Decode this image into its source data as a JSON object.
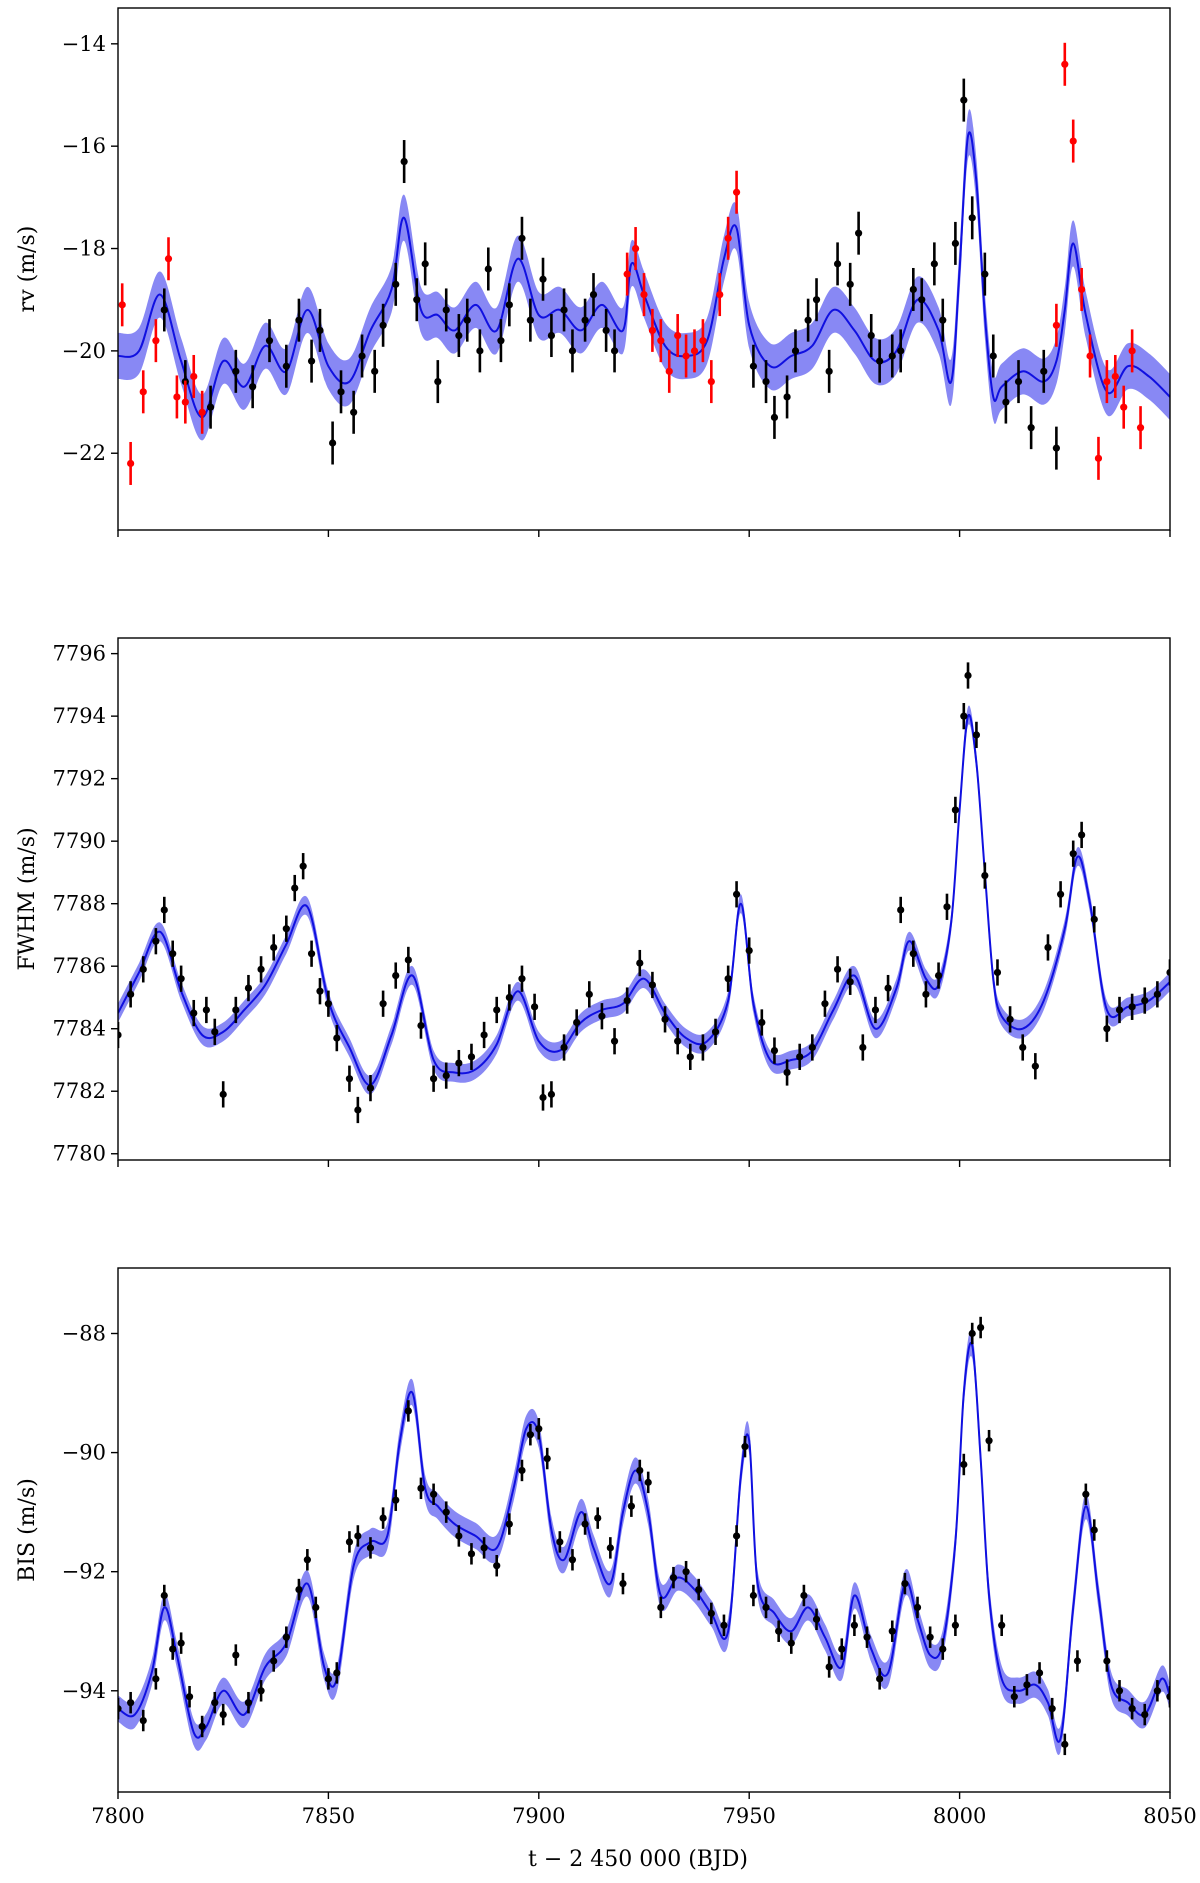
{
  "figure": {
    "xlabel": "t − 2 450 000 (BJD)",
    "xlim": [
      7800,
      8050
    ],
    "xticks": [
      7800,
      7850,
      7900,
      7950,
      8000,
      8050
    ]
  },
  "colors": {
    "model": "#1010e0",
    "band": "#5a5af0",
    "points": "#000000",
    "points_alt": "#ff0000"
  },
  "chart_data": [
    {
      "type": "scatter",
      "ylabel": "rv (m/s)",
      "ylim": [
        -23.5,
        -13.3
      ],
      "yticks": [
        -14,
        -16,
        -18,
        -20,
        -22
      ],
      "ytick_labels": [
        "−14",
        "−16",
        "−18",
        "−20",
        "−22"
      ],
      "series": [
        {
          "color": "black",
          "x": [
            7811,
            7816,
            7822,
            7828,
            7832,
            7836,
            7840,
            7843,
            7846,
            7848,
            7851,
            7853,
            7856,
            7858,
            7861,
            7863,
            7866,
            7868,
            7871,
            7873,
            7876,
            7878,
            7881,
            7883,
            7886,
            7888,
            7891,
            7893,
            7896,
            7898,
            7901,
            7903,
            7906,
            7908,
            7911,
            7913,
            7916,
            7918,
            7951,
            7954,
            7956,
            7959,
            7961,
            7964,
            7966,
            7969,
            7971,
            7974,
            7976,
            7979,
            7981,
            7984,
            7986,
            7989,
            7991,
            7994,
            7996,
            7999,
            8001,
            8003,
            8006,
            8008,
            8011,
            8014,
            8017,
            8020,
            8023
          ],
          "y": [
            -19.2,
            -20.6,
            -21.1,
            -20.4,
            -20.7,
            -19.8,
            -20.3,
            -19.4,
            -20.2,
            -19.6,
            -21.8,
            -20.8,
            -21.2,
            -20.1,
            -20.4,
            -19.5,
            -18.7,
            -16.3,
            -19.0,
            -18.3,
            -20.6,
            -19.2,
            -19.7,
            -19.4,
            -20.0,
            -18.4,
            -19.8,
            -19.1,
            -17.8,
            -19.4,
            -18.6,
            -19.7,
            -19.2,
            -20.0,
            -19.4,
            -18.9,
            -19.6,
            -20.0,
            -20.3,
            -20.6,
            -21.3,
            -20.9,
            -20.0,
            -19.4,
            -19.0,
            -20.4,
            -18.3,
            -18.7,
            -17.7,
            -19.7,
            -20.2,
            -20.1,
            -20.0,
            -18.8,
            -19.0,
            -18.3,
            -19.4,
            -17.9,
            -15.1,
            -17.4,
            -18.5,
            -20.1,
            -21.0,
            -20.6,
            -21.5,
            -20.4,
            -21.9
          ]
        },
        {
          "color": "red",
          "x": [
            7801,
            7803,
            7806,
            7809,
            7812,
            7814,
            7816,
            7818,
            7820,
            7921,
            7923,
            7925,
            7927,
            7929,
            7931,
            7933,
            7935,
            7937,
            7939,
            7941,
            7943,
            7945,
            7947,
            8023,
            8025,
            8027,
            8029,
            8031,
            8033,
            8035,
            8037,
            8039,
            8041,
            8043
          ],
          "y": [
            -19.1,
            -22.2,
            -20.8,
            -19.8,
            -18.2,
            -20.9,
            -21.0,
            -20.5,
            -21.2,
            -18.5,
            -18.0,
            -18.9,
            -19.6,
            -19.8,
            -20.4,
            -19.7,
            -20.1,
            -20.0,
            -19.8,
            -20.6,
            -18.9,
            -17.8,
            -16.9,
            -19.5,
            -14.4,
            -15.9,
            -18.8,
            -20.1,
            -22.1,
            -20.6,
            -20.5,
            -21.1,
            -20.0,
            -21.5
          ]
        }
      ],
      "model": {
        "x": [
          7800,
          7805,
          7810,
          7815,
          7820,
          7825,
          7830,
          7835,
          7840,
          7845,
          7850,
          7855,
          7860,
          7865,
          7868,
          7872,
          7876,
          7880,
          7885,
          7890,
          7895,
          7900,
          7905,
          7910,
          7915,
          7920,
          7922,
          7925,
          7930,
          7935,
          7940,
          7944,
          7947,
          7950,
          7955,
          7960,
          7965,
          7970,
          7975,
          7980,
          7985,
          7990,
          7995,
          7998,
          8000,
          8002,
          8004,
          8006,
          8008,
          8010,
          8015,
          8020,
          8023,
          8025,
          8027,
          8030,
          8035,
          8040,
          8045,
          8050
        ],
        "y": [
          -20.1,
          -20.0,
          -18.9,
          -20.2,
          -21.3,
          -20.2,
          -20.7,
          -19.9,
          -20.4,
          -19.2,
          -20.3,
          -20.6,
          -19.6,
          -18.8,
          -17.4,
          -19.2,
          -19.3,
          -19.6,
          -19.1,
          -19.6,
          -18.2,
          -19.3,
          -19.2,
          -19.6,
          -19.1,
          -19.6,
          -18.3,
          -18.9,
          -19.9,
          -20.1,
          -19.8,
          -18.2,
          -17.6,
          -19.5,
          -20.3,
          -20.1,
          -19.9,
          -19.2,
          -19.6,
          -20.2,
          -20.0,
          -19.0,
          -19.6,
          -20.6,
          -18.4,
          -15.8,
          -16.7,
          -19.3,
          -20.9,
          -20.7,
          -20.4,
          -20.6,
          -20.2,
          -19.2,
          -17.9,
          -19.3,
          -20.8,
          -20.3,
          -20.5,
          -20.9
        ],
        "band": 0.45
      }
    },
    {
      "type": "scatter",
      "ylabel": "FWHM (m/s)",
      "ylim": [
        7779.8,
        7796.5
      ],
      "yticks": [
        7780,
        7782,
        7784,
        7786,
        7788,
        7790,
        7792,
        7794,
        7796
      ],
      "ytick_labels": [
        "7780",
        "7782",
        "7784",
        "7786",
        "7788",
        "7790",
        "7792",
        "7794",
        "7796"
      ],
      "series": [
        {
          "color": "black",
          "x": [
            7800,
            7803,
            7806,
            7809,
            7811,
            7813,
            7815,
            7818,
            7821,
            7823,
            7825,
            7828,
            7831,
            7834,
            7837,
            7840,
            7842,
            7844,
            7846,
            7848,
            7850,
            7852,
            7855,
            7857,
            7860,
            7863,
            7866,
            7869,
            7872,
            7875,
            7878,
            7881,
            7884,
            7887,
            7890,
            7893,
            7896,
            7899,
            7901,
            7903,
            7906,
            7909,
            7912,
            7915,
            7918,
            7921,
            7924,
            7927,
            7930,
            7933,
            7936,
            7939,
            7942,
            7945,
            7947,
            7950,
            7953,
            7956,
            7959,
            7962,
            7965,
            7968,
            7971,
            7974,
            7977,
            7980,
            7983,
            7986,
            7989,
            7992,
            7995,
            7997,
            7999,
            8001,
            8002,
            8004,
            8006,
            8009,
            8012,
            8015,
            8018,
            8021,
            8024,
            8027,
            8029,
            8032,
            8035,
            8038,
            8041,
            8044,
            8047,
            8050
          ],
          "y": [
            7783.8,
            7785.1,
            7785.9,
            7786.8,
            7787.8,
            7786.4,
            7785.6,
            7784.5,
            7784.6,
            7783.9,
            7781.9,
            7784.6,
            7785.3,
            7785.9,
            7786.6,
            7787.2,
            7788.5,
            7789.2,
            7786.4,
            7785.2,
            7784.8,
            7783.7,
            7782.4,
            7781.4,
            7782.1,
            7784.8,
            7785.7,
            7786.2,
            7784.1,
            7782.4,
            7782.5,
            7782.9,
            7783.1,
            7783.8,
            7784.6,
            7785.0,
            7785.6,
            7784.7,
            7781.8,
            7781.9,
            7783.4,
            7784.2,
            7785.1,
            7784.4,
            7783.6,
            7784.9,
            7786.1,
            7785.4,
            7784.3,
            7783.6,
            7783.1,
            7783.4,
            7783.9,
            7785.6,
            7788.3,
            7786.5,
            7784.2,
            7783.3,
            7782.6,
            7783.1,
            7783.4,
            7784.8,
            7785.9,
            7785.5,
            7783.4,
            7784.6,
            7785.3,
            7787.8,
            7786.4,
            7785.1,
            7785.7,
            7787.9,
            7791.0,
            7794.0,
            7795.3,
            7793.4,
            7788.9,
            7785.8,
            7784.3,
            7783.4,
            7782.8,
            7786.6,
            7788.3,
            7789.6,
            7790.2,
            7787.5,
            7784.0,
            7784.6,
            7784.7,
            7784.9,
            7785.1,
            7785.8
          ]
        }
      ],
      "model": {
        "x": [
          7800,
          7805,
          7810,
          7815,
          7820,
          7825,
          7830,
          7835,
          7840,
          7845,
          7850,
          7855,
          7860,
          7865,
          7870,
          7875,
          7880,
          7885,
          7890,
          7895,
          7900,
          7905,
          7910,
          7915,
          7920,
          7925,
          7930,
          7935,
          7940,
          7945,
          7948,
          7951,
          7955,
          7960,
          7965,
          7970,
          7975,
          7980,
          7985,
          7988,
          7992,
          7995,
          7998,
          8000,
          8002,
          8004,
          8006,
          8008,
          8010,
          8015,
          8020,
          8025,
          8028,
          8031,
          8035,
          8040,
          8045,
          8050
        ],
        "y": [
          7784.5,
          7785.8,
          7787.1,
          7785.2,
          7783.8,
          7783.9,
          7784.6,
          7785.4,
          7786.7,
          7787.9,
          7784.9,
          7783.4,
          7782.2,
          7783.8,
          7785.7,
          7783.0,
          7782.6,
          7782.7,
          7783.5,
          7785.2,
          7783.6,
          7783.3,
          7784.2,
          7784.6,
          7784.8,
          7785.6,
          7784.5,
          7783.7,
          7783.6,
          7784.9,
          7788.0,
          7784.8,
          7783.0,
          7783.0,
          7783.3,
          7784.6,
          7785.7,
          7784.0,
          7785.3,
          7786.8,
          7785.6,
          7785.4,
          7787.4,
          7791.0,
          7794.0,
          7792.5,
          7789.0,
          7785.6,
          7784.4,
          7784.0,
          7784.9,
          7787.2,
          7789.5,
          7788.0,
          7784.6,
          7784.7,
          7784.9,
          7785.5
        ],
        "band": 0.3
      }
    },
    {
      "type": "scatter",
      "ylabel": "BIS (m/s)",
      "ylim": [
        -95.7,
        -86.9
      ],
      "yticks": [
        -88,
        -90,
        -92,
        -94
      ],
      "ytick_labels": [
        "−88",
        "−90",
        "−92",
        "−94"
      ],
      "series": [
        {
          "color": "black",
          "x": [
            7800,
            7803,
            7806,
            7809,
            7811,
            7813,
            7815,
            7817,
            7820,
            7823,
            7825,
            7828,
            7831,
            7834,
            7837,
            7840,
            7843,
            7845,
            7847,
            7850,
            7852,
            7855,
            7857,
            7860,
            7863,
            7866,
            7869,
            7872,
            7875,
            7878,
            7881,
            7884,
            7887,
            7890,
            7893,
            7896,
            7898,
            7900,
            7902,
            7905,
            7908,
            7911,
            7914,
            7917,
            7920,
            7922,
            7924,
            7926,
            7929,
            7932,
            7935,
            7938,
            7941,
            7944,
            7947,
            7949,
            7951,
            7954,
            7957,
            7960,
            7963,
            7966,
            7969,
            7972,
            7975,
            7978,
            7981,
            7984,
            7987,
            7990,
            7993,
            7996,
            7999,
            8001,
            8003,
            8005,
            8007,
            8010,
            8013,
            8016,
            8019,
            8022,
            8025,
            8028,
            8030,
            8032,
            8035,
            8038,
            8041,
            8044,
            8047,
            8050
          ],
          "y": [
            -94.3,
            -94.2,
            -94.5,
            -93.8,
            -92.4,
            -93.3,
            -93.2,
            -94.1,
            -94.6,
            -94.2,
            -94.4,
            -93.4,
            -94.2,
            -94.0,
            -93.5,
            -93.1,
            -92.3,
            -91.8,
            -92.6,
            -93.8,
            -93.7,
            -91.5,
            -91.4,
            -91.6,
            -91.1,
            -90.8,
            -89.3,
            -90.6,
            -90.7,
            -91.0,
            -91.4,
            -91.7,
            -91.6,
            -91.9,
            -91.2,
            -90.3,
            -89.7,
            -89.6,
            -90.1,
            -91.5,
            -91.8,
            -91.2,
            -91.1,
            -91.6,
            -92.2,
            -90.9,
            -90.3,
            -90.5,
            -92.6,
            -92.1,
            -92.0,
            -92.3,
            -92.7,
            -92.9,
            -91.4,
            -89.9,
            -92.4,
            -92.6,
            -93.0,
            -93.2,
            -92.4,
            -92.8,
            -93.6,
            -93.3,
            -92.9,
            -93.1,
            -93.8,
            -93.0,
            -92.2,
            -92.6,
            -93.1,
            -93.3,
            -92.9,
            -90.2,
            -88.0,
            -87.9,
            -89.8,
            -92.9,
            -94.1,
            -93.9,
            -93.7,
            -94.3,
            -94.9,
            -93.5,
            -90.7,
            -91.3,
            -93.5,
            -94.0,
            -94.3,
            -94.4,
            -94.0,
            -94.1
          ]
        }
      ],
      "model": {
        "x": [
          7800,
          7804,
          7808,
          7811,
          7814,
          7818,
          7821,
          7825,
          7830,
          7835,
          7840,
          7845,
          7849,
          7852,
          7856,
          7860,
          7864,
          7867,
          7870,
          7873,
          7876,
          7880,
          7885,
          7890,
          7894,
          7897,
          7900,
          7903,
          7906,
          7910,
          7913,
          7917,
          7920,
          7923,
          7926,
          7929,
          7933,
          7937,
          7941,
          7945,
          7948,
          7950,
          7952,
          7956,
          7960,
          7964,
          7968,
          7972,
          7975,
          7979,
          7983,
          7987,
          7990,
          7993,
          7996,
          7999,
          8001,
          8003,
          8005,
          8007,
          8010,
          8014,
          8018,
          8021,
          8024,
          8027,
          8030,
          8033,
          8036,
          8040,
          8044,
          8048,
          8050
        ],
        "y": [
          -94.3,
          -94.4,
          -93.7,
          -92.6,
          -93.4,
          -94.7,
          -94.6,
          -94.0,
          -94.4,
          -93.6,
          -93.2,
          -92.2,
          -93.6,
          -93.8,
          -91.9,
          -91.5,
          -91.4,
          -89.8,
          -89.0,
          -90.6,
          -90.9,
          -91.2,
          -91.4,
          -91.6,
          -90.6,
          -89.6,
          -89.7,
          -91.3,
          -91.8,
          -91.0,
          -91.6,
          -92.2,
          -91.0,
          -90.3,
          -91.0,
          -92.4,
          -92.1,
          -92.3,
          -92.7,
          -93.0,
          -90.4,
          -89.8,
          -92.2,
          -92.7,
          -93.0,
          -92.6,
          -93.1,
          -93.6,
          -92.4,
          -93.3,
          -93.7,
          -92.2,
          -92.8,
          -93.4,
          -93.2,
          -91.5,
          -89.0,
          -88.2,
          -90.1,
          -92.4,
          -93.8,
          -94.0,
          -93.9,
          -94.2,
          -94.8,
          -92.6,
          -90.9,
          -92.4,
          -93.9,
          -94.2,
          -94.4,
          -93.8,
          -94.1
        ],
        "band": 0.22
      }
    }
  ]
}
